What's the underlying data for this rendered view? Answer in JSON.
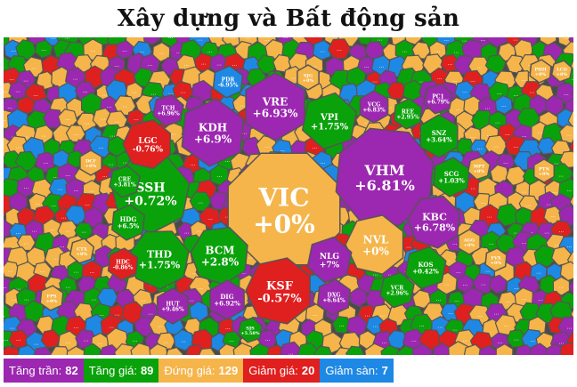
{
  "title": "Xây dựng và Bất động sản",
  "colors": {
    "ceiling": "#9c27b0",
    "up": "#0aa20a",
    "flat": "#f5b54a",
    "down": "#e01f1f",
    "floor": "#1e88e5"
  },
  "legend": [
    {
      "label": "Tăng trần:",
      "count": "82",
      "color": "#9c27b0"
    },
    {
      "label": "Tăng giá:",
      "count": "89",
      "color": "#0aa20a"
    },
    {
      "label": "Đứng giá:",
      "count": "129",
      "color": "#f5b54a"
    },
    {
      "label": "Giảm giá:",
      "count": "20",
      "color": "#e01f1f"
    },
    {
      "label": "Giảm sàn:",
      "count": "7",
      "color": "#1e88e5"
    }
  ],
  "chart_data": {
    "type": "heatmap",
    "title": "Xây dựng và Bất động sản",
    "tiles": [
      {
        "ticker": "VIC",
        "change": "+0%",
        "status": "flat"
      },
      {
        "ticker": "VHM",
        "change": "+6.81%",
        "status": "ceiling"
      },
      {
        "ticker": "SSH",
        "change": "+0.72%",
        "status": "up"
      },
      {
        "ticker": "VRE",
        "change": "+6.93%",
        "status": "ceiling"
      },
      {
        "ticker": "KDH",
        "change": "+6.9%",
        "status": "ceiling"
      },
      {
        "ticker": "VPI",
        "change": "+1.75%",
        "status": "up"
      },
      {
        "ticker": "KSF",
        "change": "-0.57%",
        "status": "down"
      },
      {
        "ticker": "BCM",
        "change": "+2.8%",
        "status": "up"
      },
      {
        "ticker": "THD",
        "change": "+1.75%",
        "status": "up"
      },
      {
        "ticker": "NVL",
        "change": "+0%",
        "status": "flat"
      },
      {
        "ticker": "KBC",
        "change": "+6.78%",
        "status": "ceiling"
      },
      {
        "ticker": "NLG",
        "change": "+7%",
        "status": "ceiling"
      },
      {
        "ticker": "LGC",
        "change": "-0.76%",
        "status": "down"
      },
      {
        "ticker": "HDG",
        "change": "+6.5%",
        "status": "up"
      },
      {
        "ticker": "CRE",
        "change": "+3.81%",
        "status": "up"
      },
      {
        "ticker": "SNZ",
        "change": "+3.64%",
        "status": "up"
      },
      {
        "ticker": "SCG",
        "change": "+1.03%",
        "status": "up"
      },
      {
        "ticker": "KOS",
        "change": "+0.42%",
        "status": "up"
      },
      {
        "ticker": "DIG",
        "change": "+6.92%",
        "status": "ceiling"
      },
      {
        "ticker": "DXG",
        "change": "+6.64%",
        "status": "ceiling"
      },
      {
        "ticker": "VCR",
        "change": "+2.96%",
        "status": "up"
      },
      {
        "ticker": "HUT",
        "change": "+9.46%",
        "status": "ceiling"
      },
      {
        "ticker": "PDR",
        "change": "-6.95%",
        "status": "floor"
      },
      {
        "ticker": "TCH",
        "change": "+6.96%",
        "status": "ceiling"
      },
      {
        "ticker": "VCG",
        "change": "+6.83%",
        "status": "ceiling"
      },
      {
        "ticker": "REE",
        "change": "+2.95%",
        "status": "up"
      },
      {
        "ticker": "PC1",
        "change": "+6.79%",
        "status": "ceiling"
      },
      {
        "ticker": "SJG",
        "change": "+0%",
        "status": "flat"
      },
      {
        "ticker": "HDC",
        "change": "-0.86%",
        "status": "down"
      },
      {
        "ticker": "CTX",
        "change": "+0%",
        "status": "flat"
      },
      {
        "ticker": "DCF",
        "change": "+0%",
        "status": "flat"
      },
      {
        "ticker": "FPS",
        "change": "+0%",
        "status": "flat"
      },
      {
        "ticker": "SJS",
        "change": "+5.58%",
        "status": "up"
      },
      {
        "ticker": "AGG",
        "change": "+0%",
        "status": "flat"
      },
      {
        "ticker": "FVX",
        "change": "+0%",
        "status": "flat"
      },
      {
        "ticker": "MPT",
        "change": "+0%",
        "status": "flat"
      },
      {
        "ticker": "PTN",
        "change": "+0%",
        "status": "flat"
      },
      {
        "ticker": "PHH",
        "change": "+0%",
        "status": "flat"
      },
      {
        "ticker": "LCD",
        "change": "+0%",
        "status": "flat"
      }
    ],
    "legend": [
      "Tăng trần: 82",
      "Tăng giá: 89",
      "Đứng giá: 129",
      "Giảm giá: 20",
      "Giảm sàn: 7"
    ]
  }
}
